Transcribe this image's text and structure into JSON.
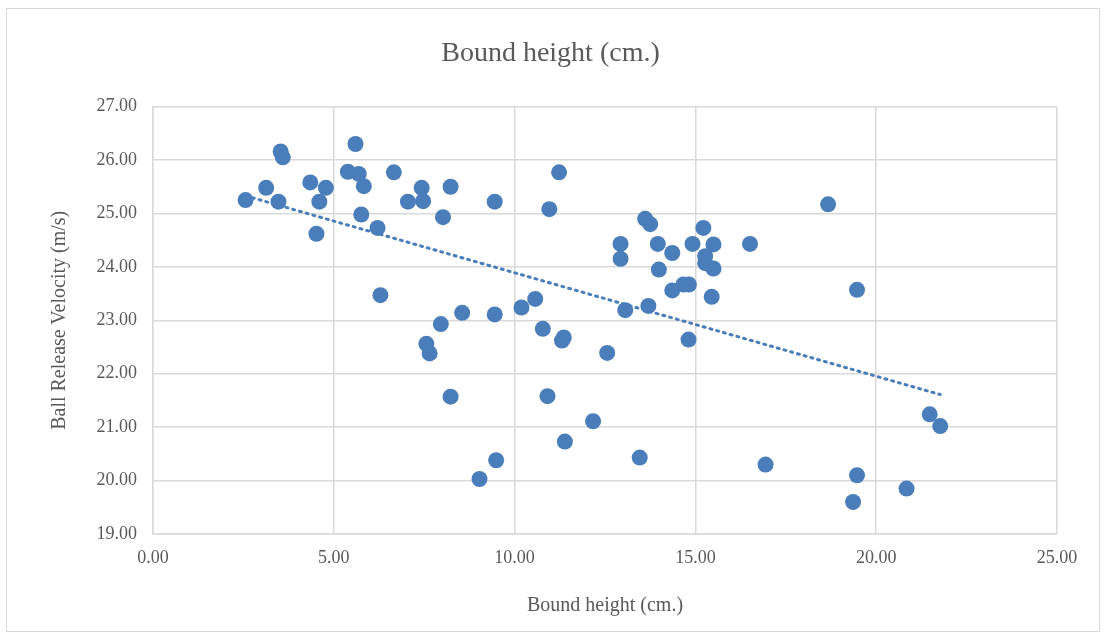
{
  "chart_data": {
    "type": "scatter",
    "title": "Bound height (cm.)",
    "xlabel": "Bound height (cm.)",
    "ylabel": "Ball Release Velocity (m/s)",
    "xlim": [
      0,
      25
    ],
    "ylim": [
      19,
      27
    ],
    "xticks": [
      {
        "value": 0,
        "label": "0.00"
      },
      {
        "value": 5,
        "label": "5.00"
      },
      {
        "value": 10,
        "label": "10.00"
      },
      {
        "value": 15,
        "label": "15.00"
      },
      {
        "value": 20,
        "label": "20.00"
      },
      {
        "value": 25,
        "label": "25.00"
      }
    ],
    "yticks": [
      {
        "value": 19,
        "label": "19.00"
      },
      {
        "value": 20,
        "label": "20.00"
      },
      {
        "value": 21,
        "label": "21.00"
      },
      {
        "value": 22,
        "label": "22.00"
      },
      {
        "value": 23,
        "label": "23.00"
      },
      {
        "value": 24,
        "label": "24.00"
      },
      {
        "value": 25,
        "label": "25.00"
      },
      {
        "value": 26,
        "label": "26.00"
      },
      {
        "value": 27,
        "label": "27.00"
      }
    ],
    "grid": true,
    "marker": "circle",
    "series": [
      {
        "type": "scatter",
        "color": "#4a7ebb",
        "x": [
          2.56,
          3.13,
          3.53,
          3.59,
          3.47,
          4.35,
          4.78,
          4.6,
          4.52,
          5.6,
          5.39,
          5.69,
          5.83,
          5.76,
          6.21,
          6.29,
          6.66,
          7.43,
          7.05,
          7.47,
          8.23,
          8.02,
          8.55,
          7.96,
          7.56,
          7.65,
          8.23,
          9.45,
          11.23,
          10.96,
          9.45,
          10.19,
          10.57,
          10.78,
          11.36,
          11.31,
          12.56,
          10.91,
          12.17,
          11.39,
          9.49,
          9.03,
          13.46,
          12.93,
          12.93,
          13.06,
          13.7,
          13.61,
          13.75,
          13.96,
          14.36,
          13.99,
          14.36,
          14.67,
          14.82,
          14.81,
          14.92,
          15.22,
          15.27,
          15.27,
          15.5,
          15.5,
          15.45,
          16.51,
          18.67,
          19.47,
          16.94,
          19.47,
          19.36,
          20.84,
          21.48,
          21.77
        ],
        "values": [
          25.25,
          25.48,
          26.16,
          26.05,
          25.22,
          25.58,
          25.48,
          25.22,
          24.62,
          26.3,
          25.78,
          25.74,
          25.51,
          24.98,
          24.73,
          23.47,
          25.77,
          25.48,
          25.22,
          25.23,
          25.5,
          24.93,
          23.14,
          22.93,
          22.56,
          22.38,
          21.57,
          25.22,
          25.77,
          25.08,
          23.11,
          23.24,
          23.4,
          22.84,
          22.68,
          22.62,
          22.39,
          21.58,
          21.11,
          20.73,
          20.38,
          20.03,
          20.43,
          24.43,
          24.15,
          23.19,
          23.27,
          24.9,
          24.8,
          24.43,
          24.26,
          23.95,
          23.56,
          23.67,
          23.67,
          22.64,
          24.43,
          24.73,
          24.2,
          24.07,
          24.42,
          23.97,
          23.44,
          24.43,
          25.17,
          23.57,
          20.3,
          20.1,
          19.6,
          19.85,
          21.24,
          21.02
        ]
      },
      {
        "type": "line",
        "color": "#4a7ebb",
        "line_style": "dotted",
        "marker": "none",
        "x": [
          2.56,
          21.77
        ],
        "values": [
          25.33,
          21.61
        ]
      }
    ]
  }
}
